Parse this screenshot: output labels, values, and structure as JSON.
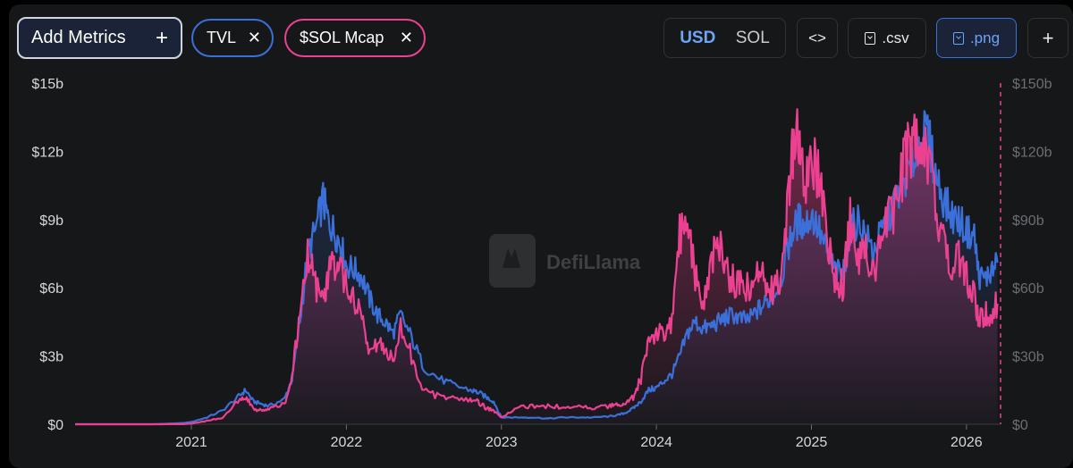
{
  "toolbar": {
    "add_metrics_label": "Add Metrics",
    "pills": [
      {
        "label": "TVL",
        "color": "#3b6fd9"
      },
      {
        "label": "$SOL Mcap",
        "color": "#ec4191"
      }
    ],
    "currency_options": [
      "USD",
      "SOL"
    ],
    "selected_currency": "USD",
    "csv_label": ".csv",
    "png_label": ".png",
    "embed_icon": "code-icon",
    "add_icon": "plus-icon"
  },
  "watermark": "DefiLlama",
  "chart_data": {
    "type": "area",
    "x": [
      2020.25,
      2020.5,
      2020.75,
      2020.95,
      2021.0,
      2021.1,
      2021.2,
      2021.3,
      2021.35,
      2021.4,
      2021.45,
      2021.5,
      2021.6,
      2021.65,
      2021.7,
      2021.75,
      2021.8,
      2021.85,
      2021.88,
      2021.92,
      2021.96,
      2022.0,
      2022.05,
      2022.1,
      2022.15,
      2022.2,
      2022.25,
      2022.3,
      2022.35,
      2022.42,
      2022.5,
      2022.6,
      2022.7,
      2022.8,
      2022.85,
      2022.9,
      2022.95,
      2023.0,
      2023.1,
      2023.2,
      2023.3,
      2023.4,
      2023.5,
      2023.6,
      2023.7,
      2023.75,
      2023.8,
      2023.85,
      2023.9,
      2023.95,
      2024.0,
      2024.05,
      2024.1,
      2024.15,
      2024.2,
      2024.25,
      2024.3,
      2024.35,
      2024.4,
      2024.45,
      2024.5,
      2024.55,
      2024.6,
      2024.65,
      2024.7,
      2024.75,
      2024.8,
      2024.85,
      2024.88,
      2024.92,
      2024.95,
      2025.0,
      2025.05,
      2025.1,
      2025.15,
      2025.2,
      2025.25,
      2025.3,
      2025.35,
      2025.4,
      2025.45,
      2025.5,
      2025.55,
      2025.6,
      2025.65,
      2025.7,
      2025.75,
      2025.8,
      2025.85,
      2025.9,
      2025.95,
      2026.0,
      2026.05,
      2026.08,
      2026.12,
      2026.16,
      2026.2
    ],
    "series": [
      {
        "name": "TVL",
        "axis": "left",
        "unit": "USD",
        "color": "#3b6fd9",
        "values": [
          0.0,
          0.0,
          0.0,
          0.05,
          0.1,
          0.3,
          0.6,
          1.2,
          1.5,
          1.0,
          0.9,
          0.8,
          1.1,
          2.0,
          4.5,
          7.5,
          8.5,
          9.9,
          9.0,
          8.5,
          8.0,
          7.0,
          6.8,
          6.5,
          5.5,
          4.8,
          4.5,
          4.0,
          4.8,
          3.8,
          2.5,
          2.0,
          1.7,
          1.5,
          1.4,
          1.2,
          1.0,
          0.3,
          0.3,
          0.3,
          0.25,
          0.3,
          0.3,
          0.3,
          0.35,
          0.4,
          0.5,
          0.7,
          1.0,
          1.5,
          1.6,
          1.9,
          2.2,
          3.0,
          4.0,
          4.5,
          4.2,
          4.3,
          4.5,
          4.7,
          4.8,
          4.6,
          4.6,
          5.0,
          5.3,
          5.6,
          6.3,
          7.8,
          8.5,
          9.0,
          8.7,
          9.2,
          8.5,
          7.5,
          6.8,
          6.5,
          8.5,
          9.0,
          8.3,
          7.6,
          8.4,
          9.2,
          10.0,
          10.8,
          11.5,
          12.5,
          12.8,
          11.0,
          10.0,
          9.2,
          9.0,
          8.5,
          8.3,
          6.5,
          6.4,
          6.7,
          7.1
        ]
      },
      {
        "name": "$SOL Mcap",
        "axis": "right",
        "unit": "USD",
        "color": "#ec4191",
        "values": [
          0.0,
          0.0,
          0.0,
          0.05,
          0.3,
          1.5,
          3.0,
          10.0,
          12.0,
          7.0,
          6.0,
          6.5,
          9.0,
          20.0,
          50.0,
          78.0,
          60.0,
          52.0,
          65.0,
          70.0,
          72.0,
          62.0,
          55.0,
          45.0,
          30.0,
          35.0,
          32.0,
          30.0,
          42.0,
          30.0,
          15.0,
          12.0,
          11.0,
          11.0,
          10.0,
          7.0,
          6.0,
          3.0,
          7.0,
          8.0,
          8.0,
          7.5,
          7.5,
          7.0,
          8.0,
          8.5,
          9.0,
          12.0,
          20.0,
          38.0,
          40.0,
          40.0,
          45.0,
          82.0,
          88.0,
          65.0,
          55.0,
          70.0,
          80.0,
          68.0,
          62.0,
          60.0,
          62.0,
          70.0,
          64.0,
          60.0,
          62.0,
          98.0,
          120.0,
          125.0,
          105.0,
          120.0,
          105.0,
          85.0,
          65.0,
          60.0,
          90.0,
          70.0,
          80.0,
          65.0,
          78.0,
          90.0,
          100.0,
          115.0,
          124.0,
          130.0,
          120.0,
          100.0,
          80.0,
          70.0,
          75.0,
          65.0,
          55.0,
          45.0,
          48.0,
          49.0,
          53.0
        ]
      }
    ],
    "x_ticks": [
      "2021",
      "2022",
      "2023",
      "2024",
      "2025",
      "2026"
    ],
    "left_axis": {
      "ticks": [
        "$0",
        "$3b",
        "$6b",
        "$9b",
        "$12b",
        "$15b"
      ],
      "range": [
        0,
        15
      ],
      "unit": "billion USD"
    },
    "right_axis": {
      "ticks": [
        "$0",
        "$30b",
        "$60b",
        "$90b",
        "$120b",
        "$150b"
      ],
      "range": [
        0,
        150
      ],
      "unit": "billion USD"
    },
    "x_range": [
      2020.25,
      2026.22
    ],
    "grid": false,
    "legend": "top-left"
  }
}
